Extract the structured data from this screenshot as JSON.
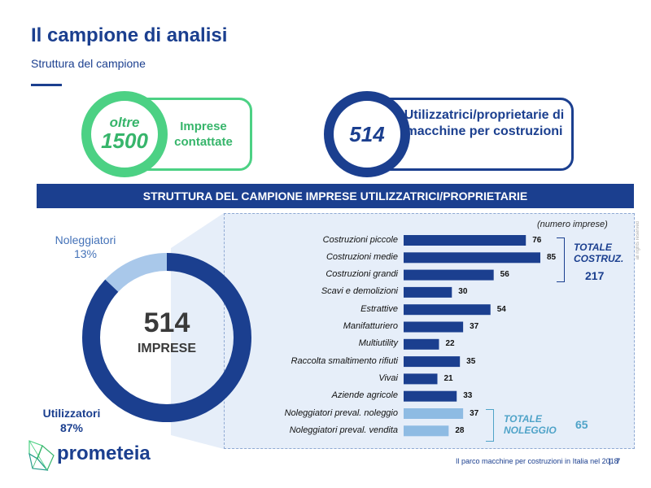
{
  "header": {
    "title": "Il campione di analisi",
    "subtitle": "Struttura del campione"
  },
  "stats": {
    "contacted": {
      "prefix": "oltre",
      "value": "1500",
      "label": "Imprese contattate"
    },
    "sample": {
      "value": "514",
      "label": "Utilizzatrici/proprietarie di macchine per costruzioni"
    }
  },
  "banner": "STRUTTURA DEL CAMPIONE IMPRESE UTILIZZATRICI/PROPRIETARIE",
  "colors": {
    "brand": "#1b3f8f",
    "green": "#4cd184",
    "light_blue": "#a9c8ea",
    "bar_dark": "#1b3f8f",
    "bar_light": "#8ebbe3",
    "teal": "#4fa3c8"
  },
  "chart_data": [
    {
      "type": "pie",
      "variant": "donut",
      "center_value": "514",
      "center_label": "IMPRESE",
      "slices": [
        {
          "label": "Utilizzatori",
          "percent_label": "87%",
          "value": 87,
          "color": "#1b3f8f"
        },
        {
          "label": "Noleggiatori",
          "percent_label": "13%",
          "value": 13,
          "color": "#a9c8ea"
        }
      ]
    },
    {
      "type": "bar",
      "orientation": "horizontal",
      "unit_note": "(numero imprese)",
      "categories": [
        "Costruzioni piccole",
        "Costruzioni medie",
        "Costruzioni grandi",
        "Scavi e demolizioni",
        "Estrattive",
        "Manifatturiero",
        "Multiutility",
        "Raccolta smaltimento rifiuti",
        "Vivai",
        "Aziende agricole",
        "Noleggiatori preval. noleggio",
        "Noleggiatori preval. vendita"
      ],
      "values": [
        76,
        85,
        56,
        30,
        54,
        37,
        22,
        35,
        21,
        33,
        37,
        28
      ],
      "bar_group": [
        "dark",
        "dark",
        "dark",
        "dark",
        "dark",
        "dark",
        "dark",
        "dark",
        "dark",
        "dark",
        "light",
        "light"
      ],
      "xlim": [
        0,
        85
      ],
      "grid": false,
      "annotations": [
        {
          "label_lines": [
            "TOTALE",
            "COSTRUZ."
          ],
          "value": "217",
          "color": "#1b3f8f"
        },
        {
          "label_lines": [
            "TOTALE",
            "NOLEGGIO"
          ],
          "value": "65",
          "color": "#4fa3c8"
        }
      ]
    }
  ],
  "rights_note": "all rights reserved",
  "footer": {
    "brand": "prometeia",
    "text": "Il parco macchine per costruzioni in Italia nel 2018",
    "separator": "|",
    "page": "7"
  }
}
